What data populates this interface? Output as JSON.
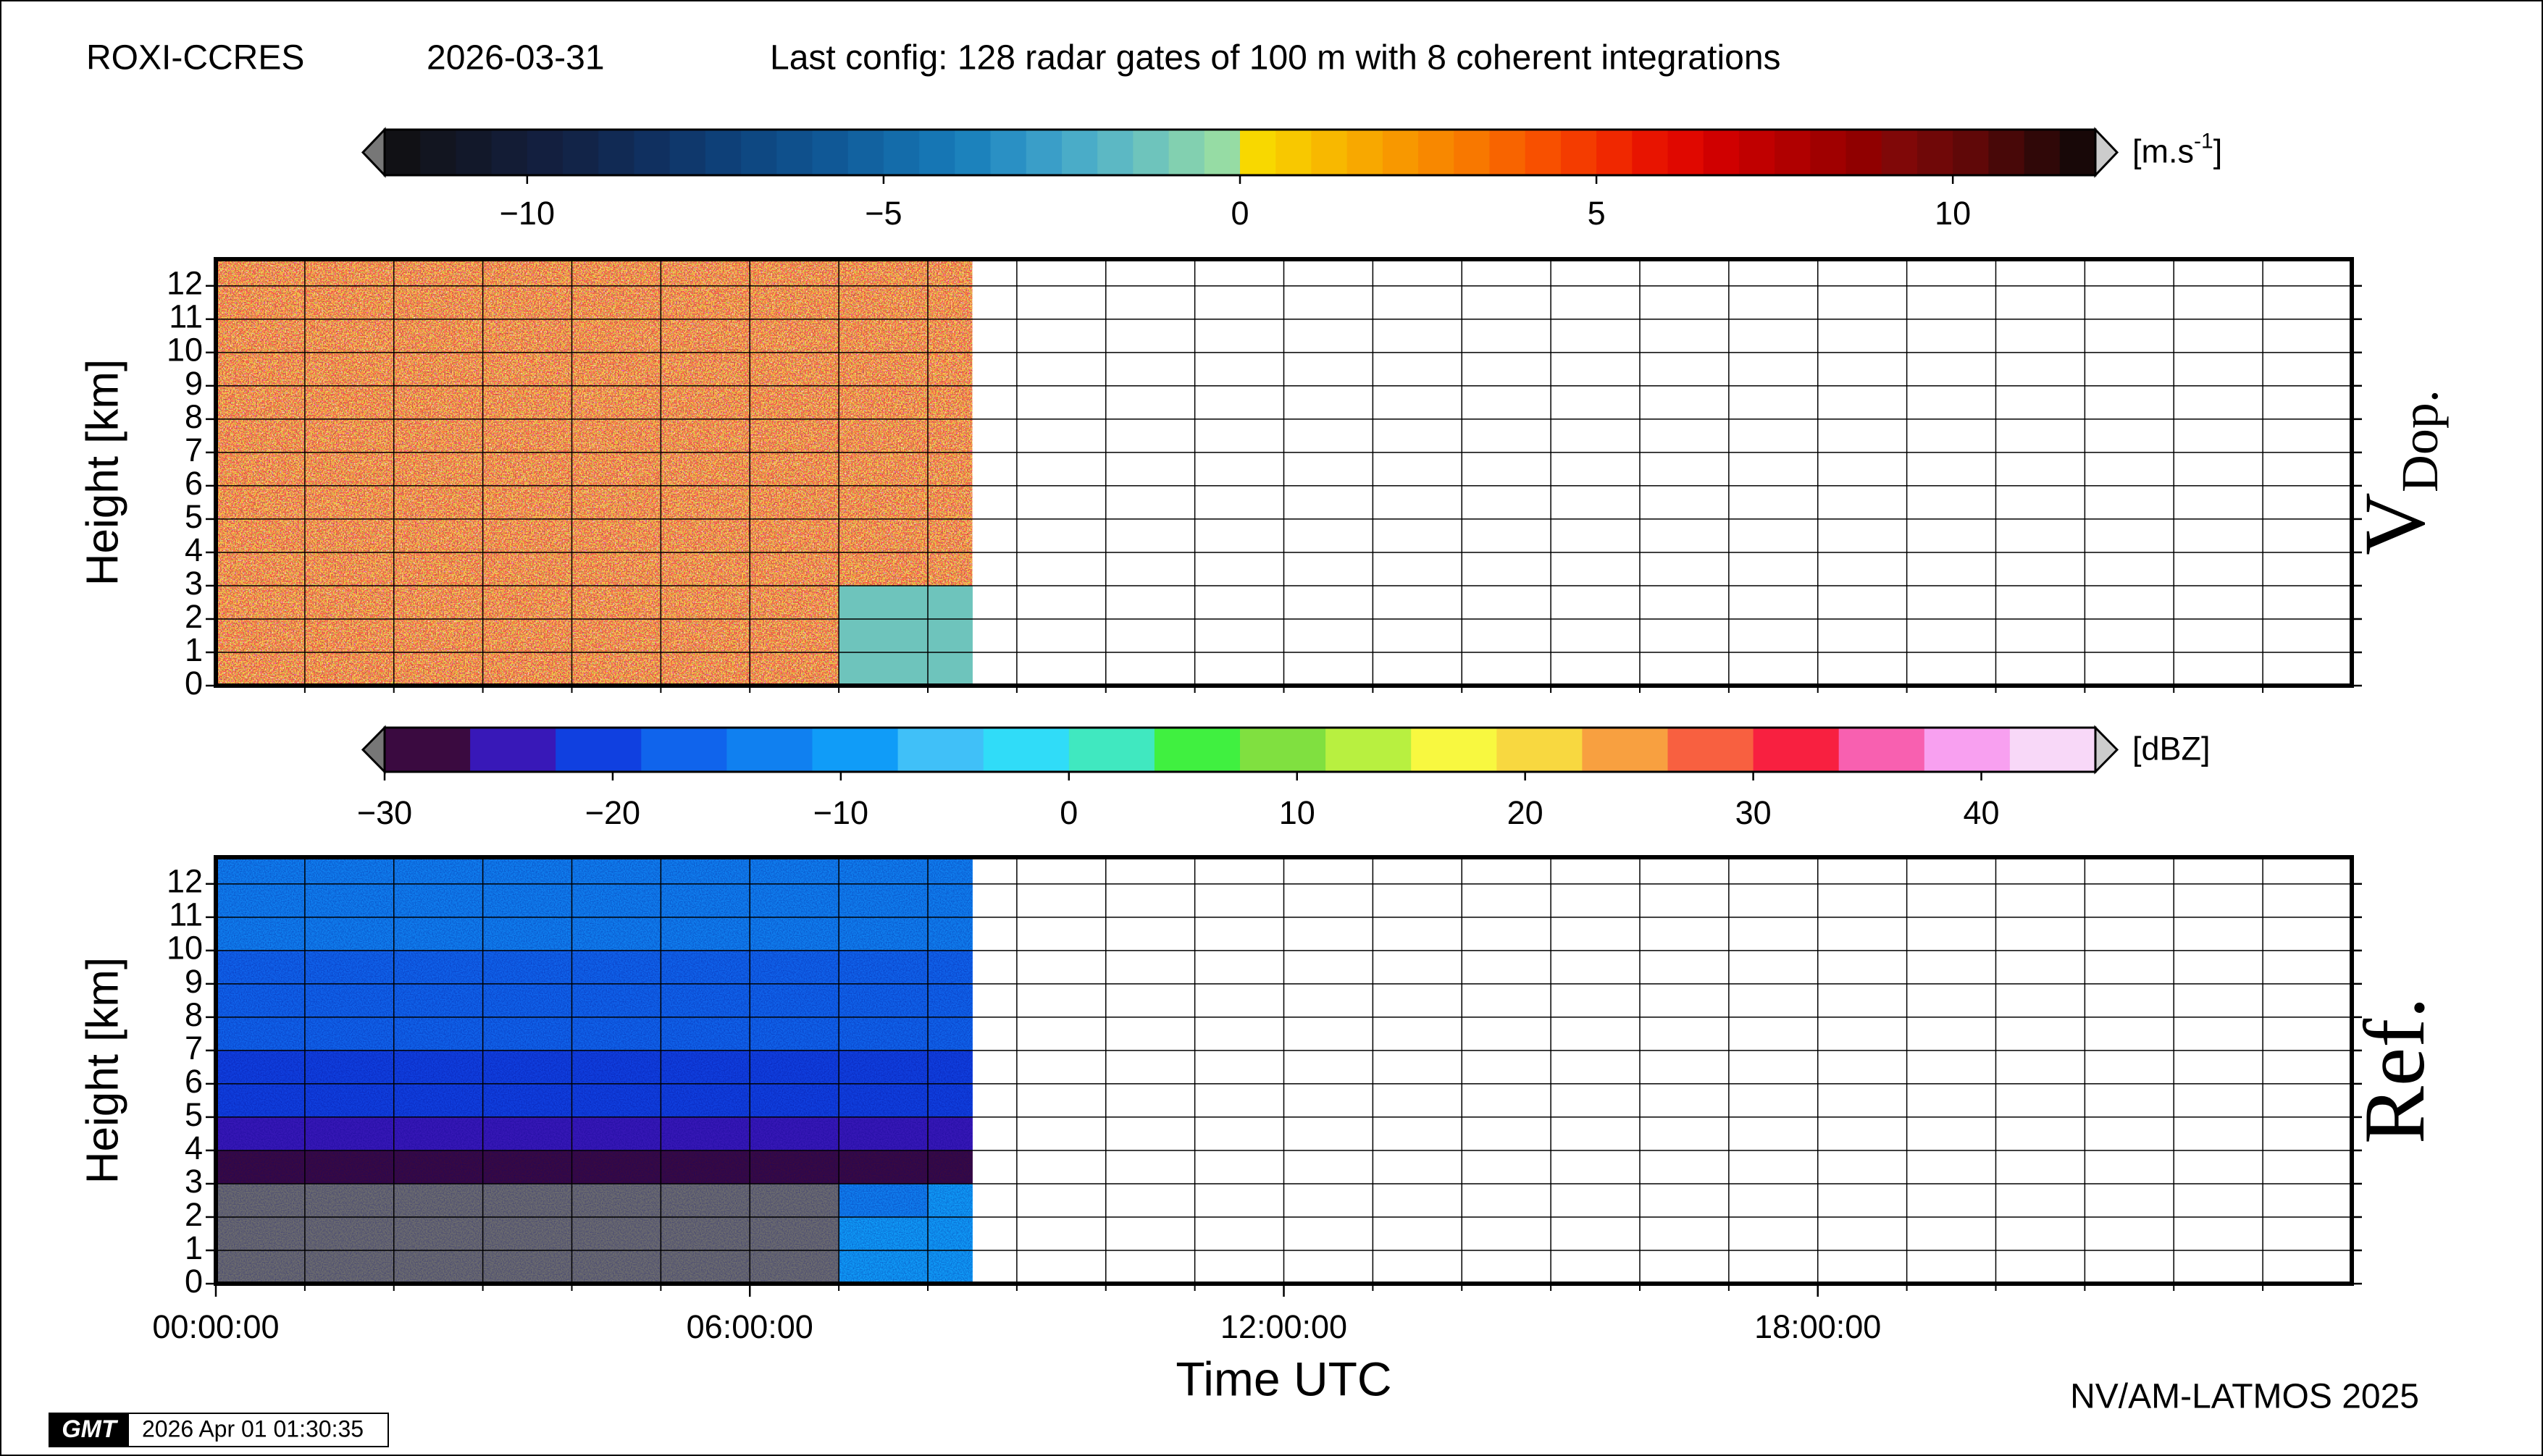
{
  "header": {
    "station": "ROXI-CCRES",
    "date": "2026-03-31",
    "config": "Last config: 128 radar gates of 100 m with 8 coherent integrations"
  },
  "chart_data": [
    {
      "type": "heatmap",
      "panel_label": "V",
      "panel_label_sub": "Dop.",
      "ylabel": "Height [km]",
      "xlim": [
        0,
        24
      ],
      "ylim": [
        0,
        12.8
      ],
      "xgrid": [
        1,
        2,
        3,
        4,
        5,
        6,
        7,
        8,
        9,
        10,
        11,
        12,
        13,
        14,
        15,
        16,
        17,
        18,
        19,
        20,
        21,
        22,
        23
      ],
      "yticks": [
        0,
        1,
        2,
        3,
        4,
        5,
        6,
        7,
        8,
        9,
        10,
        11,
        12
      ],
      "x_edges": [
        0,
        1,
        2,
        3,
        4,
        5,
        6,
        7,
        8,
        8.5
      ],
      "y_edges": [
        0,
        1,
        2,
        3,
        4,
        5,
        6,
        7,
        8,
        9,
        10,
        11,
        12,
        12.8
      ],
      "z": [
        [
          null,
          null,
          null,
          null,
          null,
          null,
          null,
          -1.5,
          -1.5
        ],
        [
          null,
          null,
          null,
          null,
          null,
          null,
          null,
          -1.5,
          -1.5
        ],
        [
          null,
          null,
          null,
          null,
          null,
          null,
          null,
          -1.5,
          -1.5
        ],
        [
          null,
          null,
          null,
          null,
          null,
          null,
          null,
          null,
          null
        ],
        [
          null,
          null,
          null,
          null,
          null,
          null,
          null,
          null,
          null
        ],
        [
          null,
          null,
          null,
          null,
          null,
          null,
          null,
          null,
          null
        ],
        [
          null,
          null,
          null,
          null,
          null,
          null,
          null,
          null,
          null
        ],
        [
          null,
          null,
          null,
          null,
          null,
          null,
          null,
          null,
          null
        ],
        [
          null,
          null,
          null,
          null,
          null,
          null,
          null,
          null,
          null
        ],
        [
          null,
          null,
          null,
          null,
          null,
          null,
          null,
          null,
          null
        ],
        [
          null,
          null,
          null,
          null,
          null,
          null,
          null,
          null,
          null
        ],
        [
          null,
          null,
          null,
          null,
          null,
          null,
          null,
          null,
          null
        ],
        [
          null,
          null,
          null,
          null,
          null,
          null,
          null,
          null,
          null
        ]
      ],
      "colorbar": {
        "lim": [
          -12,
          12
        ],
        "ticks": [
          {
            "value": -10,
            "label": "−10"
          },
          {
            "value": -5,
            "label": "−5"
          },
          0,
          5,
          10
        ],
        "unit": "[m.s",
        "unit_sup": "-1",
        "unit_end": "]",
        "colors": [
          "#111115",
          "#121520",
          "#12182a",
          "#131c35",
          "#131f3f",
          "#122448",
          "#112a54",
          "#103060",
          "#0f386c",
          "#0e4078",
          "#0e4882",
          "#0f508c",
          "#105896",
          "#1262a0",
          "#146caa",
          "#1676b4",
          "#1c82bc",
          "#2a90c4",
          "#3a9ec8",
          "#4aacc8",
          "#5cb8c4",
          "#6ec4bc",
          "#82d0b0",
          "#96dca4",
          "#f8d800",
          "#f8c800",
          "#f8b800",
          "#f8a800",
          "#f89800",
          "#f88800",
          "#f87800",
          "#f86400",
          "#f85000",
          "#f43c00",
          "#f02800",
          "#e81400",
          "#e00800",
          "#d00000",
          "#c00000",
          "#b00000",
          "#a00000",
          "#900000",
          "#800808",
          "#700808",
          "#600808",
          "#480808",
          "#300808",
          "#180808"
        ]
      }
    },
    {
      "type": "heatmap",
      "panel_label": "Ref.",
      "ylabel": "Height [km]",
      "xlabel": "Time UTC",
      "xlim": [
        0,
        24
      ],
      "ylim": [
        0,
        12.8
      ],
      "xgrid": [
        1,
        2,
        3,
        4,
        5,
        6,
        7,
        8,
        9,
        10,
        11,
        12,
        13,
        14,
        15,
        16,
        17,
        18,
        19,
        20,
        21,
        22,
        23
      ],
      "xticks": [
        {
          "value": 0,
          "label": "00:00:00"
        },
        {
          "value": 6,
          "label": "06:00:00"
        },
        {
          "value": 12,
          "label": "12:00:00"
        },
        {
          "value": 18,
          "label": "18:00:00"
        }
      ],
      "yticks": [
        0,
        1,
        2,
        3,
        4,
        5,
        6,
        7,
        8,
        9,
        10,
        11,
        12
      ],
      "x_edges": [
        0,
        1,
        2,
        3,
        4,
        5,
        6,
        7,
        8,
        8.5
      ],
      "y_edges": [
        0,
        1,
        2,
        3,
        4,
        5,
        6,
        7,
        8,
        9,
        10,
        11,
        12,
        12.8
      ],
      "z": [
        [
          null,
          null,
          null,
          null,
          null,
          null,
          null,
          -8,
          -10
        ],
        [
          null,
          null,
          null,
          null,
          null,
          null,
          null,
          -10,
          -9
        ],
        [
          null,
          null,
          null,
          null,
          null,
          null,
          null,
          -12,
          -10
        ],
        [
          -27,
          -27,
          -27,
          -27,
          -27,
          -27,
          -27,
          -27,
          -27
        ],
        [
          -23,
          -23,
          -23,
          -23,
          -23,
          -23,
          -24,
          -24,
          -24
        ],
        [
          -21,
          -21,
          -21,
          -21,
          -21,
          -21,
          -22,
          -22,
          -22
        ],
        [
          -19,
          -19,
          -19,
          -19,
          -19,
          -20,
          -20,
          -20,
          -20
        ],
        [
          -18,
          -18,
          -18,
          -18,
          -18,
          -18,
          -18,
          -18,
          -18
        ],
        [
          -17,
          -17,
          -17,
          -17,
          -17,
          -17,
          -17,
          -17,
          -17
        ],
        [
          -16,
          -16,
          -16,
          -16,
          -16,
          -16,
          -16,
          -16,
          -16
        ],
        [
          -15,
          -15,
          -15,
          -15,
          -15,
          -15,
          -15,
          -15,
          -15
        ],
        [
          -14,
          -14,
          -14,
          -14,
          -14,
          -14,
          -14,
          -14,
          -14
        ],
        [
          -14,
          -14,
          -14,
          -14,
          -14,
          -14,
          -14,
          -14,
          -14
        ]
      ],
      "colorbar": {
        "lim": [
          -30,
          45
        ],
        "ticks": [
          {
            "value": -30,
            "label": "−30"
          },
          {
            "value": -20,
            "label": "−20"
          },
          {
            "value": -10,
            "label": "−10"
          },
          0,
          10,
          20,
          30,
          40
        ],
        "unit": "[dBZ]",
        "colors": [
          "#3a0a40",
          "#3818b8",
          "#1040e0",
          "#1064ec",
          "#1080f0",
          "#109cf8",
          "#40c0f8",
          "#30dcf8",
          "#40e8c0",
          "#40f040",
          "#80e040",
          "#b8f040",
          "#f8f840",
          "#f8d840",
          "#f8a040",
          "#f86040",
          "#f82040",
          "#f860b0",
          "#f8a0f0",
          "#f8d8f8"
        ]
      }
    }
  ],
  "footer": {
    "credit": "NV/AM-LATMOS 2025",
    "logo": "GMT",
    "timestamp": "2026 Apr 01 01:30:35"
  }
}
